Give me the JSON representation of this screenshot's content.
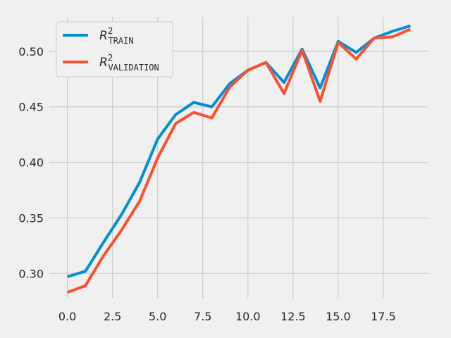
{
  "chart_data": {
    "type": "line",
    "x": [
      0,
      1,
      2,
      3,
      4,
      5,
      6,
      7,
      8,
      9,
      10,
      11,
      12,
      13,
      14,
      15,
      16,
      17,
      18,
      19
    ],
    "series": [
      {
        "name": "R",
        "superscript": "2",
        "subscript": "TRAIN",
        "color": "#008fd5",
        "values": [
          0.297,
          0.302,
          0.328,
          0.353,
          0.382,
          0.421,
          0.443,
          0.454,
          0.45,
          0.471,
          0.483,
          0.49,
          0.472,
          0.502,
          0.467,
          0.509,
          0.499,
          0.512,
          0.518,
          0.523
        ]
      },
      {
        "name": "R",
        "superscript": "2",
        "subscript": "VALIDATION",
        "color": "#fc4f30",
        "values": [
          0.283,
          0.289,
          0.316,
          0.339,
          0.365,
          0.404,
          0.435,
          0.445,
          0.44,
          0.468,
          0.483,
          0.49,
          0.462,
          0.501,
          0.455,
          0.508,
          0.493,
          0.512,
          0.513,
          0.52
        ]
      }
    ],
    "xlim": [
      -1,
      20
    ],
    "ylim": [
      0.278,
      0.531
    ],
    "xticks": [
      0.0,
      2.5,
      5.0,
      7.5,
      10.0,
      12.5,
      15.0,
      17.5
    ],
    "xtick_labels": [
      "0.0",
      "2.5",
      "5.0",
      "7.5",
      "10.0",
      "12.5",
      "15.0",
      "17.5"
    ],
    "yticks": [
      0.3,
      0.35,
      0.4,
      0.45,
      0.5
    ],
    "ytick_labels": [
      "0.30",
      "0.35",
      "0.40",
      "0.45",
      "0.50"
    ],
    "grid": true,
    "legend": "top-left",
    "background": "#f0f0f0",
    "grid_color": "#cbcbcb"
  }
}
